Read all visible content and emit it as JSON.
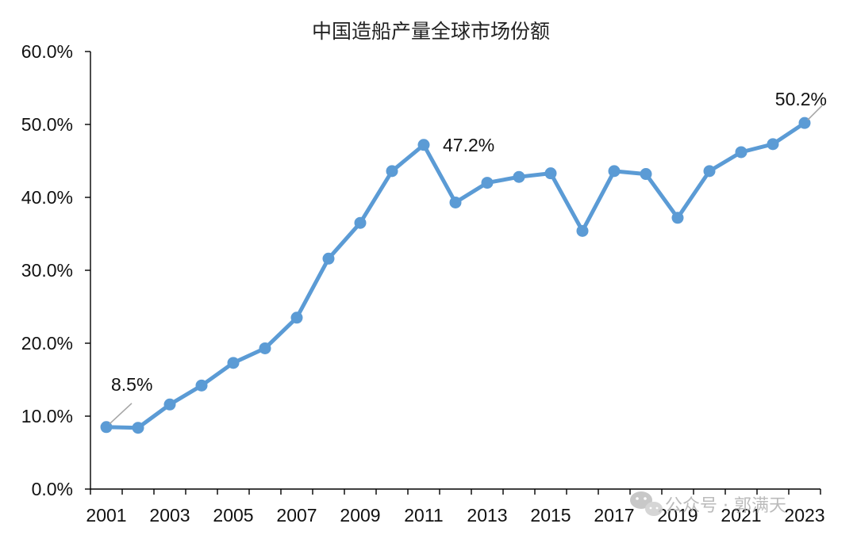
{
  "chart_data": {
    "type": "line",
    "title": "中国造船产量全球市场份额",
    "xlabel": "",
    "ylabel": "",
    "x": [
      2001,
      2002,
      2003,
      2004,
      2005,
      2006,
      2007,
      2008,
      2009,
      2010,
      2011,
      2012,
      2013,
      2014,
      2015,
      2016,
      2017,
      2018,
      2019,
      2020,
      2021,
      2022,
      2023
    ],
    "x_tick_labels": [
      "2001",
      "2003",
      "2005",
      "2007",
      "2009",
      "2011",
      "2013",
      "2015",
      "2017",
      "2019",
      "2021",
      "2023"
    ],
    "y_tick_labels": [
      "0.0%",
      "10.0%",
      "20.0%",
      "30.0%",
      "40.0%",
      "50.0%",
      "60.0%"
    ],
    "ylim": [
      0,
      60
    ],
    "series": [
      {
        "values": [
          8.5,
          8.4,
          11.6,
          14.2,
          17.3,
          19.3,
          23.5,
          31.6,
          36.5,
          43.6,
          47.2,
          39.3,
          42.0,
          42.8,
          43.3,
          35.4,
          43.6,
          43.2,
          37.2,
          43.6,
          46.2,
          47.3,
          50.2
        ],
        "color": "#5b9bd5"
      }
    ],
    "annotations": [
      {
        "index": 0,
        "text": "8.5%"
      },
      {
        "index": 10,
        "text": "47.2%"
      },
      {
        "index": 22,
        "text": "50.2%"
      }
    ],
    "grid": false,
    "legend": "none"
  },
  "watermark": {
    "text": "公众号 · 郭满天",
    "icon": "wechat-icon"
  }
}
